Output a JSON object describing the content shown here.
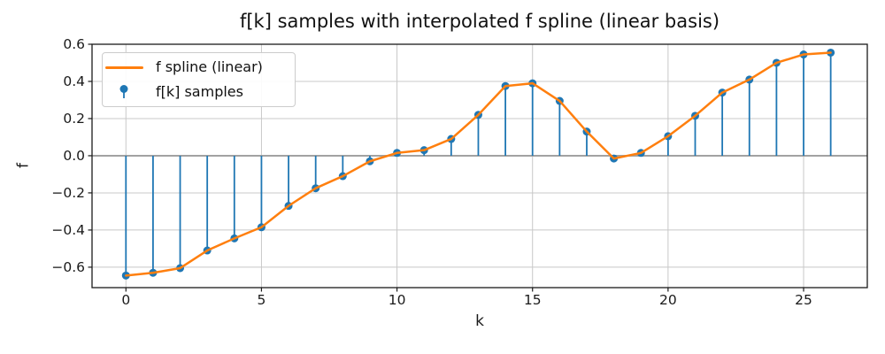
{
  "figure": {
    "title": "f[k] samples with interpolated f spline (linear basis)",
    "xlabel": "k",
    "ylabel": "f"
  },
  "legend": {
    "position": "upper left",
    "items": [
      {
        "label": "f spline (linear)",
        "marker": "line",
        "color": "#ff7f0e"
      },
      {
        "label": "f[k] samples",
        "marker": "stem-dot",
        "color": "#1f77b4"
      }
    ]
  },
  "chart_data": {
    "type": "line",
    "title": "f[k] samples with interpolated f spline (linear basis)",
    "xlabel": "k",
    "ylabel": "f",
    "x": [
      0,
      1,
      2,
      3,
      4,
      5,
      6,
      7,
      8,
      9,
      10,
      11,
      12,
      13,
      14,
      15,
      16,
      17,
      18,
      19,
      20,
      21,
      22,
      23,
      24,
      25,
      26
    ],
    "series": [
      {
        "name": "f spline (linear)",
        "type": "line",
        "color": "#ff7f0e",
        "values": [
          -0.645,
          -0.63,
          -0.605,
          -0.51,
          -0.445,
          -0.385,
          -0.27,
          -0.175,
          -0.11,
          -0.03,
          0.015,
          0.03,
          0.09,
          0.22,
          0.375,
          0.39,
          0.295,
          0.13,
          -0.015,
          0.015,
          0.105,
          0.215,
          0.34,
          0.41,
          0.5,
          0.545,
          0.555
        ]
      },
      {
        "name": "f[k] samples",
        "type": "stem",
        "color": "#1f77b4",
        "values": [
          -0.645,
          -0.63,
          -0.605,
          -0.51,
          -0.445,
          -0.385,
          -0.27,
          -0.175,
          -0.11,
          -0.03,
          0.015,
          0.03,
          0.09,
          0.22,
          0.375,
          0.39,
          0.295,
          0.13,
          -0.015,
          0.015,
          0.105,
          0.215,
          0.34,
          0.41,
          0.5,
          0.545,
          0.555
        ]
      }
    ],
    "xticks": [
      0,
      5,
      10,
      15,
      20,
      25
    ],
    "xticklabels": [
      "0",
      "5",
      "10",
      "15",
      "20",
      "25"
    ],
    "yticks": [
      0.6,
      0.4,
      0.2,
      0,
      -0.2,
      -0.4,
      -0.6
    ],
    "yticklabels": [
      "0.6",
      "0.4",
      "0.2",
      "0.0",
      "−0.2",
      "−0.4",
      "−0.6"
    ],
    "xlim": [
      -1.25,
      27.35
    ],
    "ylim": [
      -0.71,
      0.6
    ],
    "grid": true,
    "baseline": 0,
    "legend_position": "upper left",
    "colors": {
      "grid": "#c8c8c8",
      "baseline": "#a2a2a2",
      "spine": "#1a1a1a",
      "background": "#ffffff"
    }
  }
}
